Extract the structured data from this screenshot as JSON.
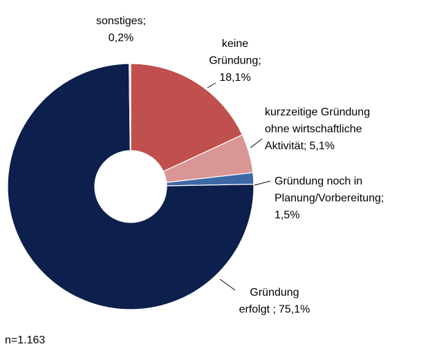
{
  "chart_data": {
    "type": "donut",
    "categories": [
      [
        "keine",
        "Gründung;"
      ],
      [
        "kurzzeitige Gründung",
        "ohne wirtschaftliche",
        "Aktivität;"
      ],
      [
        "Gründung noch in",
        "Planung/Vorbereitung;"
      ],
      [
        "Gründung",
        "erfolgt ;"
      ],
      [
        "sonstiges;"
      ]
    ],
    "values": [
      18.1,
      5.1,
      1.5,
      75.1,
      0.2
    ],
    "value_labels": [
      "18,1%",
      "5,1%",
      "1,5%",
      "75,1%",
      "0,2%"
    ],
    "colors": [
      "#c0504d",
      "#d99694",
      "#3d68a6",
      "#0c1f4d",
      "#d9d9d9"
    ],
    "note": "n=1.163"
  }
}
